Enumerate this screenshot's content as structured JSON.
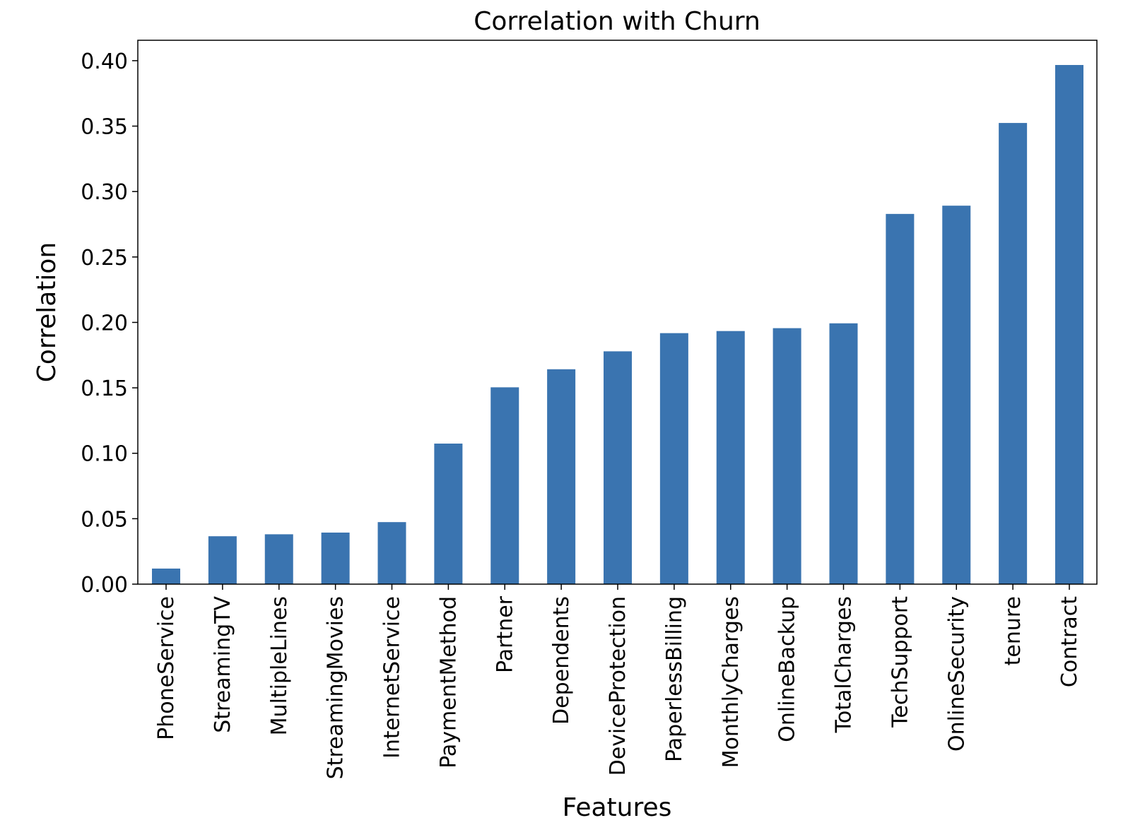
{
  "chart_data": {
    "type": "bar",
    "title": "Correlation with Churn",
    "xlabel": "Features",
    "ylabel": "Correlation",
    "categories": [
      "PhoneService",
      "StreamingTV",
      "MultipleLines",
      "StreamingMovies",
      "InternetService",
      "PaymentMethod",
      "Partner",
      "Dependents",
      "DeviceProtection",
      "PaperlessBilling",
      "MonthlyCharges",
      "OnlineBackup",
      "TotalCharges",
      "TechSupport",
      "OnlineSecurity",
      "tenure",
      "Contract"
    ],
    "values": [
      0.0119,
      0.0366,
      0.0381,
      0.0394,
      0.0474,
      0.1074,
      0.1504,
      0.1642,
      0.1779,
      0.1918,
      0.1934,
      0.1956,
      0.1993,
      0.2829,
      0.2892,
      0.3524,
      0.3967
    ],
    "yticks": [
      "0.00",
      "0.05",
      "0.10",
      "0.15",
      "0.20",
      "0.25",
      "0.30",
      "0.35",
      "0.40"
    ],
    "ylim": [
      0,
      0.4156
    ],
    "grid": false,
    "legend": "none",
    "bar_color": "#3a74b0"
  }
}
